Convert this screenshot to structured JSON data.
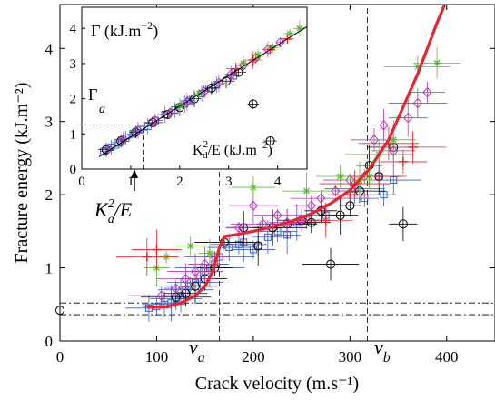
{
  "chart_data": [
    {
      "type": "scatter",
      "title": "",
      "xlabel": "Crack velocity (m.s⁻¹)",
      "ylabel": "Fracture energy (kJ.m⁻²)",
      "xlim": [
        0,
        450
      ],
      "ylim": [
        0,
        4.6
      ],
      "xticks": [
        "0",
        "100",
        "200",
        "300",
        "400"
      ],
      "yticks": [
        "0",
        "1",
        "2",
        "3",
        "4"
      ],
      "grid": false,
      "annotations": {
        "va_label": "v",
        "va_sub": "a",
        "vb_label": "v",
        "vb_sub": "b",
        "ka_label": "K",
        "ka_sup": "2",
        "ka_sub": "a",
        "ka_tail": "/E"
      },
      "reference_lines": {
        "v_a": 165,
        "v_b": 318,
        "gamma_levels": [
          0.36,
          0.52
        ]
      },
      "highlighted_point": {
        "x": 0,
        "y": 0.42,
        "marker": "circle"
      },
      "fit_curve": {
        "color": "#e8242c",
        "x": [
          90,
          110,
          125,
          140,
          150,
          158,
          165,
          170,
          180,
          200,
          220,
          240,
          260,
          280,
          300,
          320,
          340,
          355,
          370,
          380,
          390,
          398
        ],
        "y": [
          0.46,
          0.47,
          0.52,
          0.62,
          0.75,
          0.95,
          1.28,
          1.43,
          1.45,
          1.5,
          1.56,
          1.64,
          1.74,
          1.88,
          2.06,
          2.35,
          2.75,
          3.2,
          3.65,
          4.0,
          4.35,
          4.65
        ]
      },
      "series": [
        {
          "marker": "square",
          "color": "#3b5cc4",
          "x": [
            92,
            100,
            108,
            115,
            120,
            125,
            130,
            135,
            140,
            145,
            150,
            155,
            160,
            165,
            175,
            185,
            190,
            200,
            205,
            215,
            225,
            235,
            245,
            255,
            275,
            305,
            315,
            330,
            335,
            345
          ],
          "y": [
            0.45,
            0.47,
            0.5,
            0.52,
            0.58,
            0.62,
            0.7,
            0.75,
            0.8,
            0.85,
            0.95,
            1.0,
            1.05,
            1.15,
            1.28,
            1.32,
            1.35,
            1.25,
            1.3,
            1.42,
            1.5,
            1.45,
            1.62,
            1.65,
            1.72,
            2.08,
            1.95,
            2.25,
            2.0,
            2.2
          ]
        },
        {
          "marker": "circle",
          "color": "#000000",
          "x": [
            120,
            130,
            140,
            150,
            160,
            170,
            190,
            205,
            220,
            235,
            250,
            260,
            270,
            280,
            290,
            300,
            310,
            320,
            330,
            345,
            355
          ],
          "y": [
            0.6,
            0.65,
            0.75,
            0.85,
            1.0,
            1.35,
            1.55,
            1.3,
            1.55,
            1.6,
            1.65,
            1.62,
            1.78,
            1.05,
            1.72,
            1.85,
            2.05,
            2.4,
            2.25,
            2.65,
            1.6
          ]
        },
        {
          "marker": "diamond",
          "color": "#b23ab5",
          "x": [
            105,
            120,
            130,
            140,
            150,
            160,
            185,
            200,
            210,
            225,
            235,
            250,
            260,
            270,
            285,
            300,
            315,
            325,
            335,
            345,
            360,
            370,
            380
          ],
          "y": [
            0.62,
            0.72,
            0.85,
            0.95,
            1.05,
            1.15,
            1.55,
            1.85,
            1.6,
            1.72,
            1.62,
            1.65,
            1.85,
            1.95,
            2.05,
            2.2,
            2.25,
            2.75,
            2.95,
            2.6,
            3.05,
            3.25,
            3.4
          ]
        },
        {
          "marker": "asterisk",
          "color": "#5fb83a",
          "x": [
            100,
            110,
            135,
            155,
            200,
            255,
            290,
            310,
            320,
            330,
            345,
            370,
            390
          ],
          "y": [
            1.0,
            1.15,
            1.3,
            1.2,
            2.1,
            2.05,
            2.25,
            2.2,
            2.25,
            2.55,
            2.75,
            3.75,
            3.8
          ]
        },
        {
          "marker": "plus",
          "color": "#e8242c",
          "x": [
            90,
            100,
            275,
            300,
            305,
            330,
            340,
            355,
            365
          ],
          "y": [
            1.15,
            1.25,
            1.65,
            2.0,
            2.15,
            2.25,
            2.7,
            2.45,
            2.65
          ]
        }
      ]
    },
    {
      "type": "scatter",
      "title": "Γ (kJ.m⁻²)",
      "xlabel": "K²d/E (kJ.m⁻²)",
      "ylabel": "",
      "xlim": [
        0,
        4.6
      ],
      "ylim": [
        0,
        4.6
      ],
      "xticks": [
        "0",
        "1",
        "2",
        "3",
        "4"
      ],
      "yticks": [
        "0",
        "1",
        "2",
        "3",
        "4"
      ],
      "gamma_a_label": "Γ",
      "gamma_a_sub": "a",
      "reference_lines": {
        "Ka2_over_E": 1.25,
        "gamma_a": 1.25
      },
      "fit_line": {
        "x": [
          0.35,
          4.6
        ],
        "y": [
          0.35,
          4.05
        ]
      },
      "title_parts": {
        "main": "Γ (kJ.m",
        "sup": "−2",
        "close": ")"
      },
      "xlabel_parts": {
        "pre": "K",
        "sup": "2",
        "sub": "d",
        "post": "/E (kJ.m",
        "sup2": "−2",
        "close": ")"
      },
      "series": [
        {
          "marker": "square",
          "color": "#3b5cc4",
          "x": [
            0.45,
            0.6,
            0.75,
            0.9,
            1.05,
            1.2,
            1.35,
            1.5,
            1.7,
            1.9,
            2.1,
            2.2,
            2.45,
            2.6,
            2.75,
            3.1
          ],
          "y": [
            0.5,
            0.62,
            0.75,
            0.88,
            1.0,
            1.12,
            1.22,
            1.38,
            1.55,
            1.68,
            1.85,
            1.95,
            2.15,
            2.3,
            2.4,
            2.65
          ]
        },
        {
          "marker": "circle",
          "color": "#000000",
          "x": [
            0.5,
            0.8,
            1.1,
            1.45,
            1.75,
            2.0,
            2.3,
            2.65,
            2.95,
            3.2,
            3.5,
            3.85
          ],
          "y": [
            0.55,
            0.8,
            1.05,
            1.32,
            1.55,
            1.75,
            2.0,
            2.3,
            2.5,
            2.75,
            1.85,
            0.8
          ]
        },
        {
          "marker": "diamond",
          "color": "#b23ab5",
          "x": [
            0.55,
            0.85,
            1.15,
            1.5,
            1.8,
            2.15,
            2.5,
            2.8,
            3.05,
            3.3,
            3.55,
            3.8,
            4.05
          ],
          "y": [
            0.58,
            0.85,
            1.1,
            1.38,
            1.6,
            1.9,
            2.2,
            2.45,
            2.7,
            2.95,
            3.15,
            3.4,
            3.6
          ]
        },
        {
          "marker": "asterisk",
          "color": "#5fb83a",
          "x": [
            2.0,
            2.4,
            3.3,
            3.6,
            3.9,
            4.25,
            4.45
          ],
          "y": [
            1.8,
            2.15,
            3.0,
            3.25,
            3.45,
            3.85,
            4.0
          ]
        },
        {
          "marker": "plus",
          "color": "#e8242c",
          "x": [
            3.15,
            3.5,
            3.85,
            4.2
          ],
          "y": [
            2.85,
            3.1,
            3.4,
            3.7
          ]
        }
      ]
    }
  ]
}
